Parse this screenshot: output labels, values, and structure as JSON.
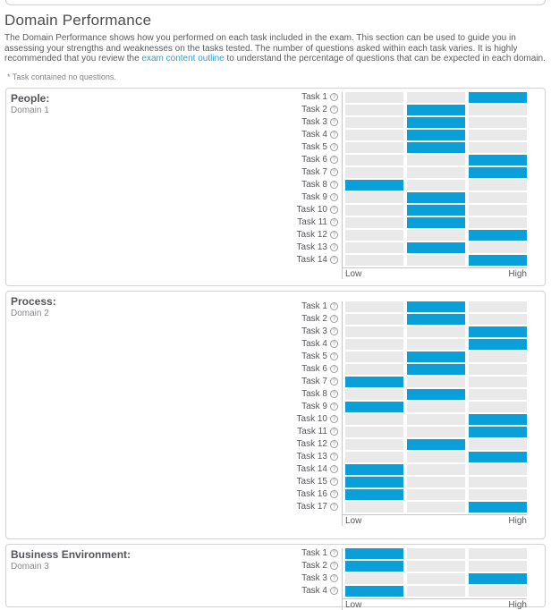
{
  "header": {
    "title": "Domain Performance",
    "description_before_link": "The Domain Performance shows how you performed on each task included in the exam. This section can be used to guide you in assessing your strengths and weaknesses on the tasks tested. The number of questions asked within each task varies. It is highly recommended that you review the ",
    "link_text": "exam content outline",
    "description_after_link": " to understand the percentage of questions that can be expected in each domain.",
    "footnote": "* Task contained no questions."
  },
  "icons": {
    "help_glyph": "?"
  },
  "axis": {
    "low_label": "Low",
    "high_label": "High"
  },
  "colors": {
    "bar_active": "#099fd9",
    "bar_inactive": "#e9e9e9",
    "link": "#2b9fd7",
    "panel_border": "#d2d2d2"
  },
  "domains": [
    {
      "name": "People:",
      "subtitle": "Domain 1",
      "tasks": [
        {
          "label": "Task 1",
          "level": "high"
        },
        {
          "label": "Task 2",
          "level": "mid"
        },
        {
          "label": "Task 3",
          "level": "mid"
        },
        {
          "label": "Task 4",
          "level": "mid"
        },
        {
          "label": "Task 5",
          "level": "mid"
        },
        {
          "label": "Task 6",
          "level": "high"
        },
        {
          "label": "Task 7",
          "level": "high"
        },
        {
          "label": "Task 8",
          "level": "low"
        },
        {
          "label": "Task 9",
          "level": "mid"
        },
        {
          "label": "Task 10",
          "level": "mid"
        },
        {
          "label": "Task 11",
          "level": "mid"
        },
        {
          "label": "Task 12",
          "level": "high"
        },
        {
          "label": "Task 13",
          "level": "mid"
        },
        {
          "label": "Task 14",
          "level": "high"
        }
      ]
    },
    {
      "name": "Process:",
      "subtitle": "Domain 2",
      "tasks": [
        {
          "label": "Task 1",
          "level": "mid"
        },
        {
          "label": "Task 2",
          "level": "mid"
        },
        {
          "label": "Task 3",
          "level": "high"
        },
        {
          "label": "Task 4",
          "level": "high"
        },
        {
          "label": "Task 5",
          "level": "mid"
        },
        {
          "label": "Task 6",
          "level": "mid"
        },
        {
          "label": "Task 7",
          "level": "low"
        },
        {
          "label": "Task 8",
          "level": "mid"
        },
        {
          "label": "Task 9",
          "level": "low"
        },
        {
          "label": "Task 10",
          "level": "high"
        },
        {
          "label": "Task 11",
          "level": "high"
        },
        {
          "label": "Task 12",
          "level": "mid"
        },
        {
          "label": "Task 13",
          "level": "high"
        },
        {
          "label": "Task 14",
          "level": "low"
        },
        {
          "label": "Task 15",
          "level": "low"
        },
        {
          "label": "Task 16",
          "level": "low"
        },
        {
          "label": "Task 17",
          "level": "high"
        }
      ]
    },
    {
      "name": "Business Environment:",
      "subtitle": "Domain 3",
      "tasks": [
        {
          "label": "Task 1",
          "level": "low"
        },
        {
          "label": "Task 2",
          "level": "low"
        },
        {
          "label": "Task 3",
          "level": "high"
        },
        {
          "label": "Task 4",
          "level": "low"
        }
      ]
    }
  ]
}
